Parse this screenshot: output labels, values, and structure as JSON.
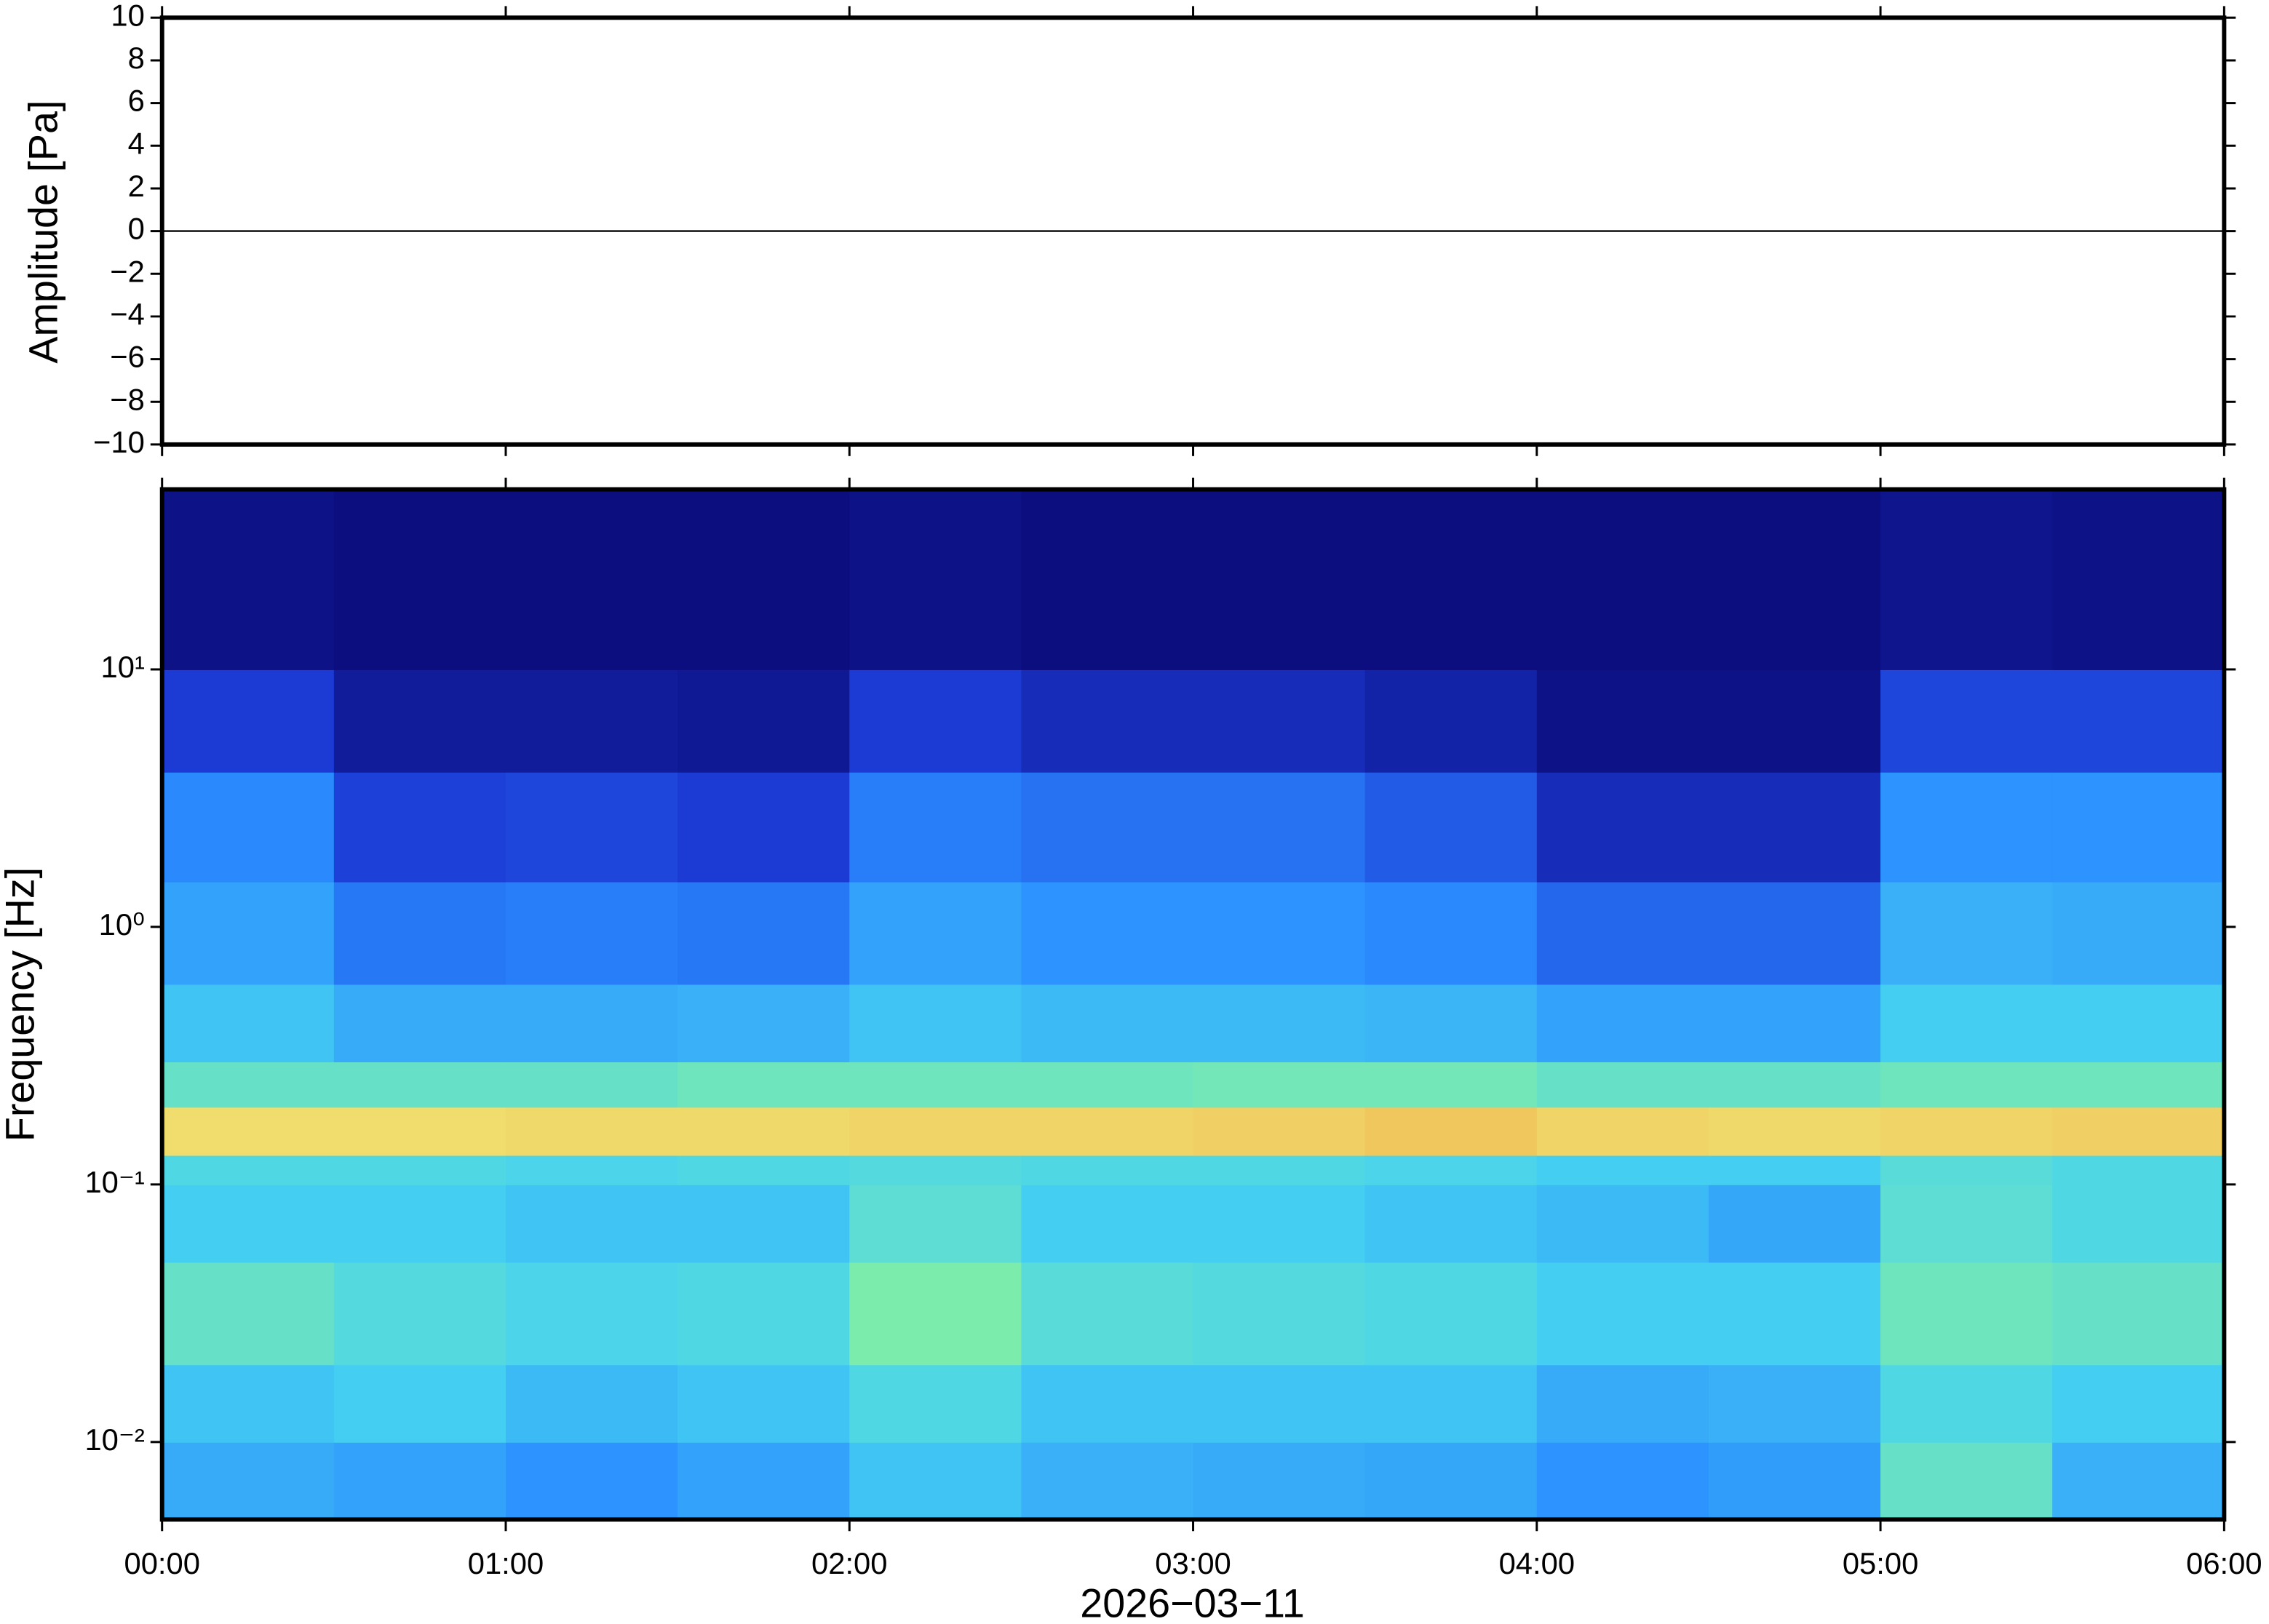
{
  "chart_data": [
    {
      "type": "line",
      "ylabel": "Amplitude [Pa]",
      "x": [
        0,
        0.5,
        1,
        1.5,
        2,
        2.5,
        3,
        3.5,
        4,
        4.5,
        5,
        5.5,
        6
      ],
      "values": [
        0,
        0,
        0,
        0,
        0,
        0,
        0,
        0,
        0,
        0,
        0,
        0,
        0
      ],
      "color": "#000000",
      "xlim": [
        0,
        6
      ],
      "xticks": [
        0,
        1,
        2,
        3,
        4,
        5,
        6
      ],
      "ylim": [
        -10,
        10
      ],
      "yticks": [
        {
          "value": -10,
          "label": "−10"
        },
        {
          "value": -8,
          "label": "−8"
        },
        {
          "value": -6,
          "label": "−6"
        },
        {
          "value": -4,
          "label": "−4"
        },
        {
          "value": -2,
          "label": "−2"
        },
        0,
        2,
        4,
        6,
        8,
        10
      ]
    },
    {
      "type": "heatmap",
      "ylabel": "Frequency [Hz]",
      "xlabel": "2026−03−11",
      "log_y": true,
      "xbins": [
        0,
        0.5,
        1,
        1.5,
        2,
        2.5,
        3,
        3.5,
        4,
        4.5,
        5,
        5.5,
        6
      ],
      "ybins": [
        0.005,
        0.01,
        0.02,
        0.05,
        0.1,
        0.13,
        0.2,
        0.3,
        0.6,
        1.5,
        4,
        10,
        50
      ],
      "colorscale": [
        "#0b0b7a",
        "#1c3cd6",
        "#2a8cff",
        "#46d2f0",
        "#86f0a0",
        "#f0e070",
        "#f0a040",
        "#d83020"
      ],
      "values": [
        [
          0.35,
          0.4,
          0.5,
          0.42,
          0.45,
          0.72,
          0.5,
          0.4,
          0.33,
          0.28,
          0.14,
          0.02
        ],
        [
          0.33,
          0.42,
          0.46,
          0.42,
          0.45,
          0.72,
          0.5,
          0.35,
          0.25,
          0.15,
          0.05,
          0.01
        ],
        [
          0.3,
          0.38,
          0.44,
          0.4,
          0.44,
          0.73,
          0.5,
          0.35,
          0.26,
          0.16,
          0.05,
          0.01
        ],
        [
          0.33,
          0.4,
          0.45,
          0.4,
          0.45,
          0.73,
          0.52,
          0.36,
          0.25,
          0.14,
          0.04,
          0.01
        ],
        [
          0.4,
          0.45,
          0.55,
          0.48,
          0.46,
          0.74,
          0.52,
          0.4,
          0.33,
          0.26,
          0.14,
          0.02
        ],
        [
          0.36,
          0.4,
          0.47,
          0.42,
          0.45,
          0.74,
          0.52,
          0.38,
          0.3,
          0.24,
          0.1,
          0.01
        ],
        [
          0.35,
          0.4,
          0.46,
          0.42,
          0.45,
          0.75,
          0.53,
          0.38,
          0.3,
          0.24,
          0.1,
          0.01
        ],
        [
          0.34,
          0.4,
          0.45,
          0.4,
          0.44,
          0.77,
          0.53,
          0.37,
          0.28,
          0.2,
          0.07,
          0.01
        ],
        [
          0.3,
          0.35,
          0.42,
          0.38,
          0.42,
          0.74,
          0.5,
          0.33,
          0.22,
          0.1,
          0.02,
          0.01
        ],
        [
          0.32,
          0.36,
          0.42,
          0.34,
          0.42,
          0.73,
          0.5,
          0.33,
          0.22,
          0.1,
          0.02,
          0.01
        ],
        [
          0.5,
          0.45,
          0.52,
          0.48,
          0.47,
          0.74,
          0.52,
          0.42,
          0.36,
          0.3,
          0.16,
          0.03
        ],
        [
          0.36,
          0.42,
          0.5,
          0.45,
          0.45,
          0.75,
          0.52,
          0.42,
          0.35,
          0.3,
          0.16,
          0.02
        ]
      ],
      "xlim": [
        0,
        6
      ],
      "xticks": [
        {
          "value": 0,
          "label": "00:00"
        },
        {
          "value": 1,
          "label": "01:00"
        },
        {
          "value": 2,
          "label": "02:00"
        },
        {
          "value": 3,
          "label": "03:00"
        },
        {
          "value": 4,
          "label": "04:00"
        },
        {
          "value": 5,
          "label": "05:00"
        },
        {
          "value": 6,
          "label": "06:00"
        }
      ],
      "ylim": [
        0.005,
        50
      ],
      "yticks": [
        {
          "value": 0.01,
          "label": "10⁻²"
        },
        {
          "value": 0.1,
          "label": "10⁻¹"
        },
        {
          "value": 1,
          "label": "10⁰"
        },
        {
          "value": 10,
          "label": "10¹"
        }
      ]
    }
  ]
}
